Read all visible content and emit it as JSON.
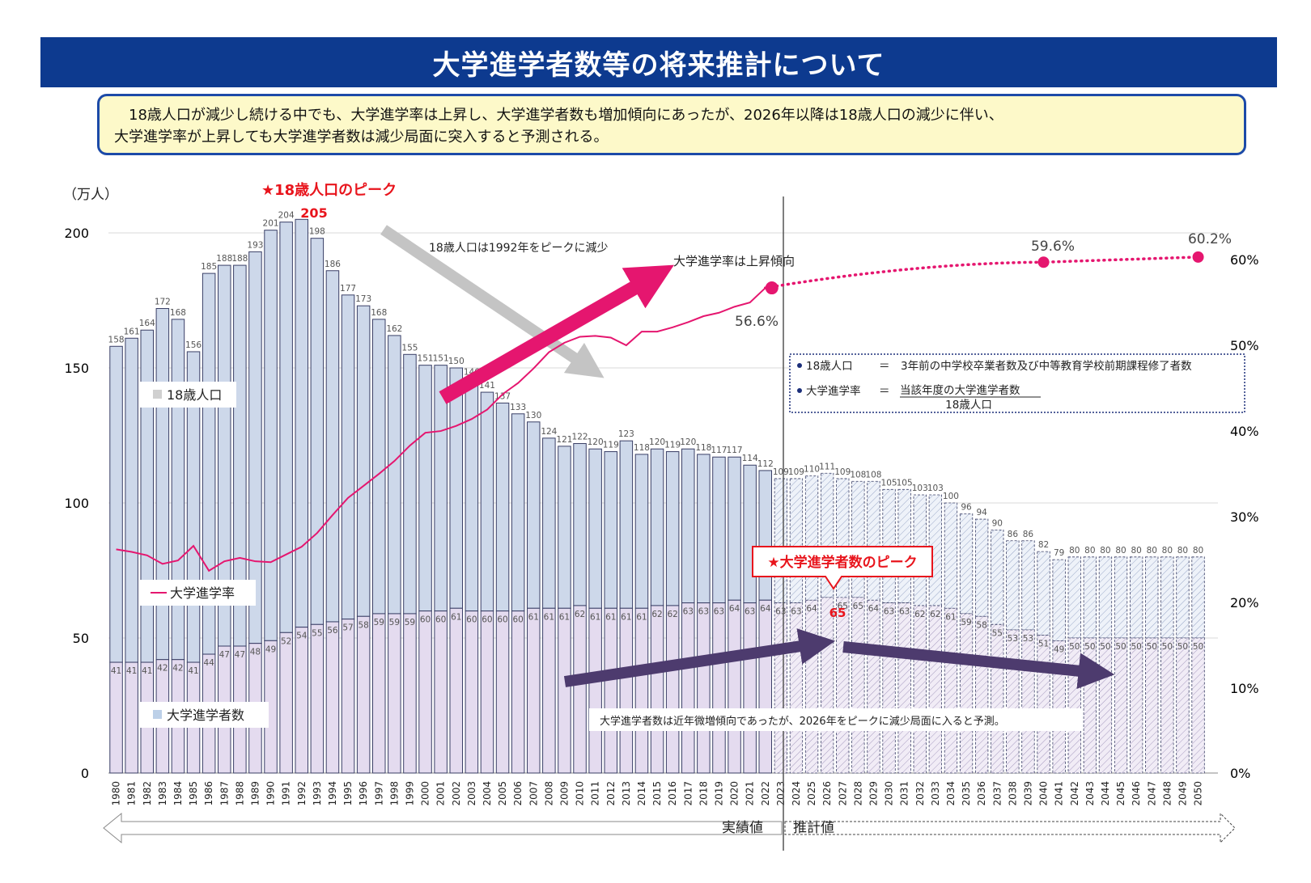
{
  "header": {
    "title": "大学進学者数等の将来推計について",
    "summary_line1": "　18歳人口が減少し続ける中でも、大学進学率は上昇し、大学進学者数も増加傾向にあったが、2026年以降は18歳人口の減少に伴い、",
    "summary_line2": "大学進学率が上昇しても大学進学者数は減少局面に突入すると予測される。"
  },
  "chart_data": {
    "type": "bar",
    "y_unit_label": "（万人）",
    "y_left_range": [
      0,
      200
    ],
    "y_left_ticks": [
      "0",
      "50",
      "100",
      "150",
      "200"
    ],
    "y_right_range": [
      0,
      60
    ],
    "y_right_ticks": [
      "0%",
      "10%",
      "20%",
      "30%",
      "40%",
      "50%",
      "60%"
    ],
    "categories": [
      "1980",
      "1981",
      "1982",
      "1983",
      "1984",
      "1985",
      "1986",
      "1987",
      "1988",
      "1989",
      "1990",
      "1991",
      "1992",
      "1993",
      "1994",
      "1995",
      "1996",
      "1997",
      "1998",
      "1999",
      "2000",
      "2001",
      "2002",
      "2003",
      "2004",
      "2005",
      "2006",
      "2007",
      "2008",
      "2009",
      "2010",
      "2011",
      "2012",
      "2013",
      "2014",
      "2015",
      "2016",
      "2017",
      "2018",
      "2019",
      "2020",
      "2021",
      "2022",
      "2023",
      "2024",
      "2025",
      "2026",
      "2027",
      "2028",
      "2029",
      "2030",
      "2031",
      "2032",
      "2033",
      "2034",
      "2035",
      "2036",
      "2037",
      "2038",
      "2039",
      "2040",
      "2041",
      "2042",
      "2043",
      "2044",
      "2045",
      "2046",
      "2047",
      "2048",
      "2049",
      "2050"
    ],
    "actual_count": 43,
    "series": [
      {
        "name": "18歳人口",
        "values": [
          158,
          161,
          164,
          172,
          168,
          156,
          185,
          188,
          188,
          193,
          201,
          204,
          205,
          198,
          186,
          177,
          173,
          168,
          162,
          155,
          151,
          151,
          150,
          146,
          141,
          137,
          133,
          130,
          124,
          121,
          122,
          120,
          119,
          123,
          118,
          120,
          119,
          120,
          118,
          117,
          117,
          114,
          112,
          109,
          109,
          110,
          111,
          109,
          108,
          108,
          105,
          105,
          103,
          103,
          100,
          96,
          94,
          90,
          86,
          86,
          82,
          79,
          80,
          80,
          80,
          80,
          80,
          80,
          80,
          80,
          80
        ]
      },
      {
        "name": "大学進学者数",
        "values": [
          41,
          41,
          41,
          42,
          42,
          41,
          44,
          47,
          47,
          48,
          49,
          52,
          54,
          55,
          56,
          57,
          58,
          59,
          59,
          59,
          60,
          60,
          61,
          60,
          60,
          60,
          60,
          61,
          61,
          61,
          62,
          61,
          61,
          61,
          61,
          62,
          62,
          63,
          63,
          63,
          64,
          63,
          64,
          63,
          63,
          64,
          65,
          65,
          65,
          64,
          63,
          63,
          62,
          62,
          61,
          59,
          58,
          55,
          53,
          53,
          51,
          49,
          50,
          50,
          50,
          50,
          50,
          50,
          50,
          50,
          50
        ]
      },
      {
        "name": "大学進学率",
        "actual_values": [
          26.1,
          25.8,
          25.4,
          24.4,
          24.8,
          26.5,
          23.6,
          24.7,
          25.1,
          24.7,
          24.6,
          25.5,
          26.4,
          28.0,
          30.1,
          32.1,
          33.5,
          34.9,
          36.4,
          38.2,
          39.7,
          39.9,
          40.5,
          41.3,
          42.4,
          44.2,
          45.5,
          47.2,
          49.1,
          50.2,
          50.9,
          51.0,
          50.8,
          49.9,
          51.5,
          51.5,
          52.0,
          52.6,
          53.3,
          53.7,
          54.4,
          54.9,
          56.6
        ],
        "projected": [
          {
            "year": "2022",
            "value": 56.6
          },
          {
            "year": "2040",
            "value": 59.6
          },
          {
            "year": "2050",
            "value": 60.2
          }
        ]
      }
    ],
    "peak_pop_value_label": "205",
    "peak_students_value_label": "65",
    "rate_label_2022": "56.6%",
    "rate_label_2040": "59.6%",
    "rate_label_2050": "60.2%",
    "annotations": {
      "pop_peak": "★18歳人口のピーク",
      "pop_decline": "18歳人口は1992年をピークに減少",
      "rate_rise": "大学進学率は上昇傾向",
      "students_peak": "★大学進学者数のピーク",
      "students_note": "大学進学者数は近年微増傾向であったが、2026年をピークに減少局面に入ると予測。"
    },
    "legend": {
      "pop": "18歳人口",
      "rate": "大学進学率",
      "students": "大学進学者数"
    },
    "definitions": {
      "pop_name": "18歳人口",
      "pop_def": "＝　3年前の中学校卒業者数及び中等教育学校前期課程修了者数",
      "rate_name": "大学進学率",
      "rate_eq": "＝",
      "rate_numerator": "当該年度の大学進学者数",
      "rate_denominator": "18歳人口"
    },
    "period_labels": {
      "actual": "実績値",
      "projected": "推計値"
    },
    "colors": {
      "pop_bar": "#cdd8ea",
      "students_bar": "#e4dbef",
      "bar_stroke": "#3a3f66",
      "rate_line": "#e5166f",
      "dark_arrow": "#4d3b6e",
      "grey_arrow": "#c4c4c4",
      "title_bg": "#0d3a8f",
      "red_text": "#e8141c"
    }
  }
}
